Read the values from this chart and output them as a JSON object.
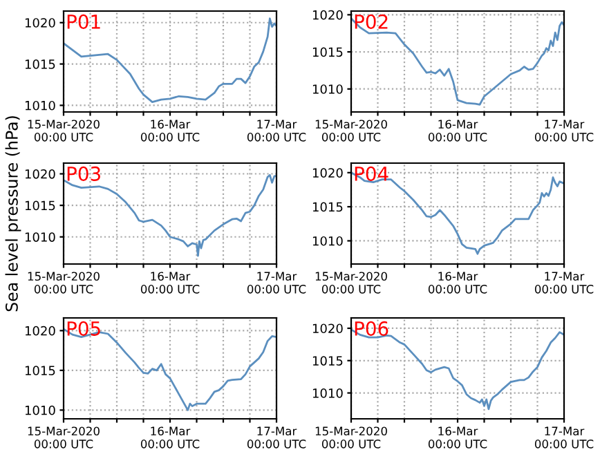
{
  "chart_data": [
    {
      "type": "line",
      "title": "P01",
      "x": [
        "2020-03-15T00:00",
        "2020-03-15T04:00",
        "2020-03-15T08:00",
        "2020-03-15T10:00",
        "2020-03-15T12:00",
        "2020-03-15T15:00",
        "2020-03-15T17:00",
        "2020-03-15T18:00",
        "2020-03-15T20:00",
        "2020-03-15T22:00",
        "2020-03-16T00:00",
        "2020-03-16T02:00",
        "2020-03-16T04:00",
        "2020-03-16T06:00",
        "2020-03-16T08:00",
        "2020-03-16T10:00",
        "2020-03-16T11:00",
        "2020-03-16T12:00",
        "2020-03-16T14:00",
        "2020-03-16T15:00",
        "2020-03-16T16:00",
        "2020-03-16T17:00",
        "2020-03-16T18:00",
        "2020-03-16T19:00",
        "2020-03-16T20:00",
        "2020-03-16T21:00",
        "2020-03-16T22:00",
        "2020-03-16T22:30",
        "2020-03-16T23:00",
        "2020-03-16T23:30",
        "2020-03-17T00:00"
      ],
      "series": [
        {
          "color": "#5b8fbf",
          "values": [
            1017.5,
            1015.9,
            1016.1,
            1016.2,
            1015.5,
            1013.8,
            1012,
            1011.3,
            1010.4,
            1010.7,
            1010.8,
            1011.1,
            1011.0,
            1010.8,
            1010.7,
            1011.5,
            1012.3,
            1012.6,
            1012.6,
            1013.2,
            1013.2,
            1012.7,
            1013.5,
            1014.7,
            1015.2,
            1016.5,
            1018.3,
            1020.5,
            1019.5,
            1019.9,
            1019.6
          ]
        }
      ],
      "xlim": [
        "2020-03-15T00:00",
        "2020-03-17T00:00"
      ],
      "xticks": [
        {
          "value": "2020-03-15T00:00",
          "label": "15-Mar-2020\n00:00 UTC"
        },
        {
          "value": "2020-03-15T06:00",
          "label": null
        },
        {
          "value": "2020-03-15T12:00",
          "label": null
        },
        {
          "value": "2020-03-15T18:00",
          "label": null
        },
        {
          "value": "2020-03-16T00:00",
          "label": "16-Mar\n00:00 UTC"
        },
        {
          "value": "2020-03-16T06:00",
          "label": null
        },
        {
          "value": "2020-03-16T12:00",
          "label": null
        },
        {
          "value": "2020-03-16T18:00",
          "label": null
        },
        {
          "value": "2020-03-17T00:00",
          "label": "17-Mar\n00:00 UTC"
        }
      ],
      "ylim": [
        1009.2,
        1021.4
      ],
      "yticks": [
        1010,
        1015,
        1020
      ],
      "grid": true
    },
    {
      "type": "line",
      "title": "P02",
      "x": [
        "2020-03-15T00:00",
        "2020-03-15T02:00",
        "2020-03-15T04:00",
        "2020-03-15T08:00",
        "2020-03-15T10:00",
        "2020-03-15T12:00",
        "2020-03-15T14:00",
        "2020-03-15T16:00",
        "2020-03-15T17:00",
        "2020-03-15T18:00",
        "2020-03-15T19:00",
        "2020-03-15T20:00",
        "2020-03-15T21:00",
        "2020-03-15T22:00",
        "2020-03-15T23:00",
        "2020-03-16T00:00",
        "2020-03-16T02:00",
        "2020-03-16T04:00",
        "2020-03-16T05:00",
        "2020-03-16T06:00",
        "2020-03-16T08:00",
        "2020-03-16T10:00",
        "2020-03-16T12:00",
        "2020-03-16T14:00",
        "2020-03-16T15:00",
        "2020-03-16T16:00",
        "2020-03-16T17:00",
        "2020-03-16T18:00",
        "2020-03-16T19:00",
        "2020-03-16T19:30",
        "2020-03-16T20:00",
        "2020-03-16T20:30",
        "2020-03-16T21:00",
        "2020-03-16T21:30",
        "2020-03-16T22:00",
        "2020-03-16T22:30",
        "2020-03-16T23:00",
        "2020-03-16T23:30",
        "2020-03-17T00:00"
      ],
      "series": [
        {
          "color": "#5b8fbf",
          "values": [
            1019.5,
            1018.3,
            1017.5,
            1017.6,
            1017.5,
            1016,
            1014.8,
            1013,
            1012.2,
            1012.3,
            1012.1,
            1012.6,
            1011.8,
            1012.7,
            1011,
            1008.5,
            1008.1,
            1008,
            1007.9,
            1009,
            1010,
            1011,
            1012,
            1012.5,
            1013.0,
            1012.6,
            1012.7,
            1013.5,
            1014.5,
            1014.8,
            1015.5,
            1015.2,
            1016.5,
            1015.8,
            1017.6,
            1016.6,
            1018.5,
            1019,
            1018.6
          ]
        }
      ],
      "xlim": [
        "2020-03-15T00:00",
        "2020-03-17T00:00"
      ],
      "xticks": [
        {
          "value": "2020-03-15T00:00",
          "label": "15-Mar-2020\n00:00 UTC"
        },
        {
          "value": "2020-03-15T06:00",
          "label": null
        },
        {
          "value": "2020-03-15T12:00",
          "label": null
        },
        {
          "value": "2020-03-15T18:00",
          "label": null
        },
        {
          "value": "2020-03-16T00:00",
          "label": "16-Mar\n00:00 UTC"
        },
        {
          "value": "2020-03-16T06:00",
          "label": null
        },
        {
          "value": "2020-03-16T12:00",
          "label": null
        },
        {
          "value": "2020-03-16T18:00",
          "label": null
        },
        {
          "value": "2020-03-17T00:00",
          "label": "17-Mar\n00:00 UTC"
        }
      ],
      "ylim": [
        1006.9,
        1020.5
      ],
      "yticks": [
        1010,
        1015,
        1020
      ],
      "grid": true
    },
    {
      "type": "line",
      "title": "P03",
      "ylabel": "Sea level pressure (hPa)",
      "x": [
        "2020-03-15T00:00",
        "2020-03-15T02:00",
        "2020-03-15T04:00",
        "2020-03-15T08:00",
        "2020-03-15T10:00",
        "2020-03-15T12:00",
        "2020-03-15T14:00",
        "2020-03-15T16:00",
        "2020-03-15T17:00",
        "2020-03-15T18:00",
        "2020-03-15T20:00",
        "2020-03-15T22:00",
        "2020-03-15T23:00",
        "2020-03-16T00:00",
        "2020-03-16T02:00",
        "2020-03-16T03:00",
        "2020-03-16T04:00",
        "2020-03-16T05:00",
        "2020-03-16T06:00",
        "2020-03-16T06:18",
        "2020-03-16T06:36",
        "2020-03-16T07:00",
        "2020-03-16T07:30",
        "2020-03-16T08:00",
        "2020-03-16T10:00",
        "2020-03-16T12:00",
        "2020-03-16T14:00",
        "2020-03-16T15:00",
        "2020-03-16T16:00",
        "2020-03-16T17:00",
        "2020-03-16T18:00",
        "2020-03-16T19:00",
        "2020-03-16T20:00",
        "2020-03-16T21:00",
        "2020-03-16T22:00",
        "2020-03-16T22:30",
        "2020-03-16T23:00",
        "2020-03-16T23:30",
        "2020-03-17T00:00"
      ],
      "series": [
        {
          "color": "#5b8fbf",
          "values": [
            1019,
            1018.2,
            1017.8,
            1018,
            1017.6,
            1016.8,
            1015.5,
            1013.8,
            1012.6,
            1012.4,
            1012.7,
            1011.8,
            1011,
            1010,
            1009.6,
            1009.3,
            1008.5,
            1009,
            1008.8,
            1007,
            1009.3,
            1008.2,
            1009.5,
            1009.6,
            1011,
            1012,
            1012.8,
            1012.9,
            1012.5,
            1013.8,
            1014,
            1015,
            1016.5,
            1017.5,
            1019.5,
            1019.8,
            1018.6,
            1019.6,
            1019.7
          ]
        }
      ],
      "xlim": [
        "2020-03-15T00:00",
        "2020-03-17T00:00"
      ],
      "xticks": [
        {
          "value": "2020-03-15T00:00",
          "label": "15-Mar-2020\n00:00 UTC"
        },
        {
          "value": "2020-03-15T06:00",
          "label": null
        },
        {
          "value": "2020-03-15T12:00",
          "label": null
        },
        {
          "value": "2020-03-15T18:00",
          "label": null
        },
        {
          "value": "2020-03-16T00:00",
          "label": "16-Mar\n00:00 UTC"
        },
        {
          "value": "2020-03-16T06:00",
          "label": null
        },
        {
          "value": "2020-03-16T12:00",
          "label": null
        },
        {
          "value": "2020-03-16T18:00",
          "label": null
        },
        {
          "value": "2020-03-17T00:00",
          "label": "17-Mar\n00:00 UTC"
        }
      ],
      "ylim": [
        1005.7,
        1021.7
      ],
      "yticks": [
        1010,
        1015,
        1020
      ],
      "grid": true
    },
    {
      "type": "line",
      "title": "P04",
      "x": [
        "2020-03-15T00:00",
        "2020-03-15T02:00",
        "2020-03-15T03:00",
        "2020-03-15T05:00",
        "2020-03-15T07:00",
        "2020-03-15T09:00",
        "2020-03-15T11:00",
        "2020-03-15T12:00",
        "2020-03-15T14:00",
        "2020-03-15T16:00",
        "2020-03-15T17:00",
        "2020-03-15T18:00",
        "2020-03-15T19:00",
        "2020-03-15T20:00",
        "2020-03-15T21:00",
        "2020-03-15T23:00",
        "2020-03-16T00:00",
        "2020-03-16T01:00",
        "2020-03-16T02:00",
        "2020-03-16T04:00",
        "2020-03-16T04:30",
        "2020-03-16T05:00",
        "2020-03-16T06:00",
        "2020-03-16T08:00",
        "2020-03-16T09:00",
        "2020-03-16T10:00",
        "2020-03-16T12:00",
        "2020-03-16T13:00",
        "2020-03-16T15:00",
        "2020-03-16T16:00",
        "2020-03-16T17:00",
        "2020-03-16T18:00",
        "2020-03-16T18:30",
        "2020-03-16T19:00",
        "2020-03-16T19:30",
        "2020-03-16T20:00",
        "2020-03-16T20:30",
        "2020-03-16T21:00",
        "2020-03-16T21:30",
        "2020-03-16T22:00",
        "2020-03-16T22:30",
        "2020-03-16T23:00",
        "2020-03-17T00:00"
      ],
      "series": [
        {
          "color": "#5b8fbf",
          "values": [
            1020,
            1019.3,
            1018.8,
            1018.6,
            1019,
            1019,
            1017.8,
            1017.3,
            1016,
            1014.5,
            1013.6,
            1013.5,
            1013.8,
            1014.5,
            1013.8,
            1012.2,
            1011,
            1009.5,
            1009,
            1008.8,
            1008.1,
            1008.8,
            1009.3,
            1009.7,
            1010.5,
            1011.5,
            1012.5,
            1013.2,
            1013.2,
            1013.2,
            1014.5,
            1015.2,
            1015.6,
            1017,
            1016.5,
            1017,
            1016.6,
            1017.5,
            1019.3,
            1018.5,
            1018,
            1018.7,
            1018.4
          ]
        }
      ],
      "xlim": [
        "2020-03-15T00:00",
        "2020-03-17T00:00"
      ],
      "xticks": [
        {
          "value": "2020-03-15T00:00",
          "label": "15-Mar-2020\n00:00 UTC"
        },
        {
          "value": "2020-03-15T06:00",
          "label": null
        },
        {
          "value": "2020-03-15T12:00",
          "label": null
        },
        {
          "value": "2020-03-15T18:00",
          "label": null
        },
        {
          "value": "2020-03-16T00:00",
          "label": "16-Mar\n00:00 UTC"
        },
        {
          "value": "2020-03-16T06:00",
          "label": null
        },
        {
          "value": "2020-03-16T12:00",
          "label": null
        },
        {
          "value": "2020-03-16T18:00",
          "label": null
        },
        {
          "value": "2020-03-17T00:00",
          "label": "17-Mar\n00:00 UTC"
        }
      ],
      "ylim": [
        1006.6,
        1021.4
      ],
      "yticks": [
        1010,
        1015,
        1020
      ],
      "grid": true
    },
    {
      "type": "line",
      "title": "P05",
      "x": [
        "2020-03-15T00:00",
        "2020-03-15T02:00",
        "2020-03-15T04:00",
        "2020-03-15T06:00",
        "2020-03-15T08:00",
        "2020-03-15T10:00",
        "2020-03-15T12:00",
        "2020-03-15T14:00",
        "2020-03-15T16:00",
        "2020-03-15T17:00",
        "2020-03-15T18:00",
        "2020-03-15T19:00",
        "2020-03-15T20:00",
        "2020-03-15T21:00",
        "2020-03-15T22:00",
        "2020-03-15T23:00",
        "2020-03-16T00:00",
        "2020-03-16T01:00",
        "2020-03-16T02:00",
        "2020-03-16T03:00",
        "2020-03-16T04:00",
        "2020-03-16T04:30",
        "2020-03-16T05:00",
        "2020-03-16T06:00",
        "2020-03-16T08:00",
        "2020-03-16T09:00",
        "2020-03-16T10:00",
        "2020-03-16T11:00",
        "2020-03-16T12:00",
        "2020-03-16T13:00",
        "2020-03-16T14:00",
        "2020-03-16T16:00",
        "2020-03-16T17:00",
        "2020-03-16T18:00",
        "2020-03-16T20:00",
        "2020-03-16T21:00",
        "2020-03-16T22:00",
        "2020-03-16T23:00",
        "2020-03-17T00:00"
      ],
      "series": [
        {
          "color": "#5b8fbf",
          "values": [
            1020.2,
            1019.5,
            1019.2,
            1019.5,
            1019.8,
            1019.6,
            1018.5,
            1017.2,
            1016,
            1015.3,
            1014.7,
            1014.6,
            1015.2,
            1015,
            1015.8,
            1014.5,
            1014,
            1013,
            1012,
            1011,
            1010,
            1010.8,
            1010.5,
            1010.8,
            1010.8,
            1011.5,
            1012.3,
            1012.5,
            1013,
            1013.7,
            1013.8,
            1013.9,
            1014.5,
            1015.5,
            1016.5,
            1017.3,
            1018.7,
            1019.3,
            1019.2
          ]
        }
      ],
      "xlim": [
        "2020-03-15T00:00",
        "2020-03-17T00:00"
      ],
      "xticks": [
        {
          "value": "2020-03-15T00:00",
          "label": "15-Mar-2020\n00:00 UTC"
        },
        {
          "value": "2020-03-15T06:00",
          "label": null
        },
        {
          "value": "2020-03-15T12:00",
          "label": null
        },
        {
          "value": "2020-03-15T18:00",
          "label": null
        },
        {
          "value": "2020-03-16T00:00",
          "label": "16-Mar\n00:00 UTC"
        },
        {
          "value": "2020-03-16T06:00",
          "label": null
        },
        {
          "value": "2020-03-16T12:00",
          "label": null
        },
        {
          "value": "2020-03-16T18:00",
          "label": null
        },
        {
          "value": "2020-03-17T00:00",
          "label": "17-Mar\n00:00 UTC"
        }
      ],
      "ylim": [
        1008.9,
        1021.6
      ],
      "yticks": [
        1010,
        1015,
        1020
      ],
      "grid": true
    },
    {
      "type": "line",
      "title": "P06",
      "x": [
        "2020-03-15T00:00",
        "2020-03-15T02:00",
        "2020-03-15T04:00",
        "2020-03-15T06:00",
        "2020-03-15T08:00",
        "2020-03-15T09:00",
        "2020-03-15T11:00",
        "2020-03-15T12:00",
        "2020-03-15T14:00",
        "2020-03-15T16:00",
        "2020-03-15T17:00",
        "2020-03-15T18:00",
        "2020-03-15T19:00",
        "2020-03-15T21:00",
        "2020-03-15T22:00",
        "2020-03-15T23:00",
        "2020-03-16T00:00",
        "2020-03-16T01:00",
        "2020-03-16T02:00",
        "2020-03-16T03:00",
        "2020-03-16T04:00",
        "2020-03-16T05:00",
        "2020-03-16T05:30",
        "2020-03-16T06:00",
        "2020-03-16T06:30",
        "2020-03-16T07:00",
        "2020-03-16T07:30",
        "2020-03-16T08:00",
        "2020-03-16T09:00",
        "2020-03-16T10:00",
        "2020-03-16T12:00",
        "2020-03-16T14:00",
        "2020-03-16T15:00",
        "2020-03-16T16:00",
        "2020-03-16T17:00",
        "2020-03-16T18:00",
        "2020-03-16T19:00",
        "2020-03-16T20:00",
        "2020-03-16T21:00",
        "2020-03-16T22:00",
        "2020-03-16T23:00",
        "2020-03-17T00:00"
      ],
      "series": [
        {
          "color": "#5b8fbf",
          "values": [
            1019.8,
            1019,
            1018.6,
            1018.6,
            1018.9,
            1018.8,
            1017.8,
            1017.5,
            1016,
            1014.5,
            1013.5,
            1013.2,
            1013.6,
            1014,
            1013.8,
            1012.3,
            1011.8,
            1011.2,
            1009.8,
            1009.2,
            1008.9,
            1008.5,
            1009,
            1008,
            1009,
            1007.5,
            1008.8,
            1009.3,
            1009.8,
            1010.5,
            1011.7,
            1012,
            1012,
            1012.4,
            1013.3,
            1014,
            1015.5,
            1016.5,
            1017.8,
            1018.5,
            1019.4,
            1019
          ]
        }
      ],
      "xlim": [
        "2020-03-15T00:00",
        "2020-03-17T00:00"
      ],
      "xticks": [
        {
          "value": "2020-03-15T00:00",
          "label": "15-Mar-2020\n00:00 UTC"
        },
        {
          "value": "2020-03-15T06:00",
          "label": null
        },
        {
          "value": "2020-03-15T12:00",
          "label": null
        },
        {
          "value": "2020-03-15T18:00",
          "label": null
        },
        {
          "value": "2020-03-16T00:00",
          "label": "16-Mar\n00:00 UTC"
        },
        {
          "value": "2020-03-16T06:00",
          "label": null
        },
        {
          "value": "2020-03-16T12:00",
          "label": null
        },
        {
          "value": "2020-03-16T18:00",
          "label": null
        },
        {
          "value": "2020-03-17T00:00",
          "label": "17-Mar\n00:00 UTC"
        }
      ],
      "ylim": [
        1006.0,
        1021.6
      ],
      "yticks": [
        1010,
        1015,
        1020
      ],
      "grid": true
    }
  ]
}
